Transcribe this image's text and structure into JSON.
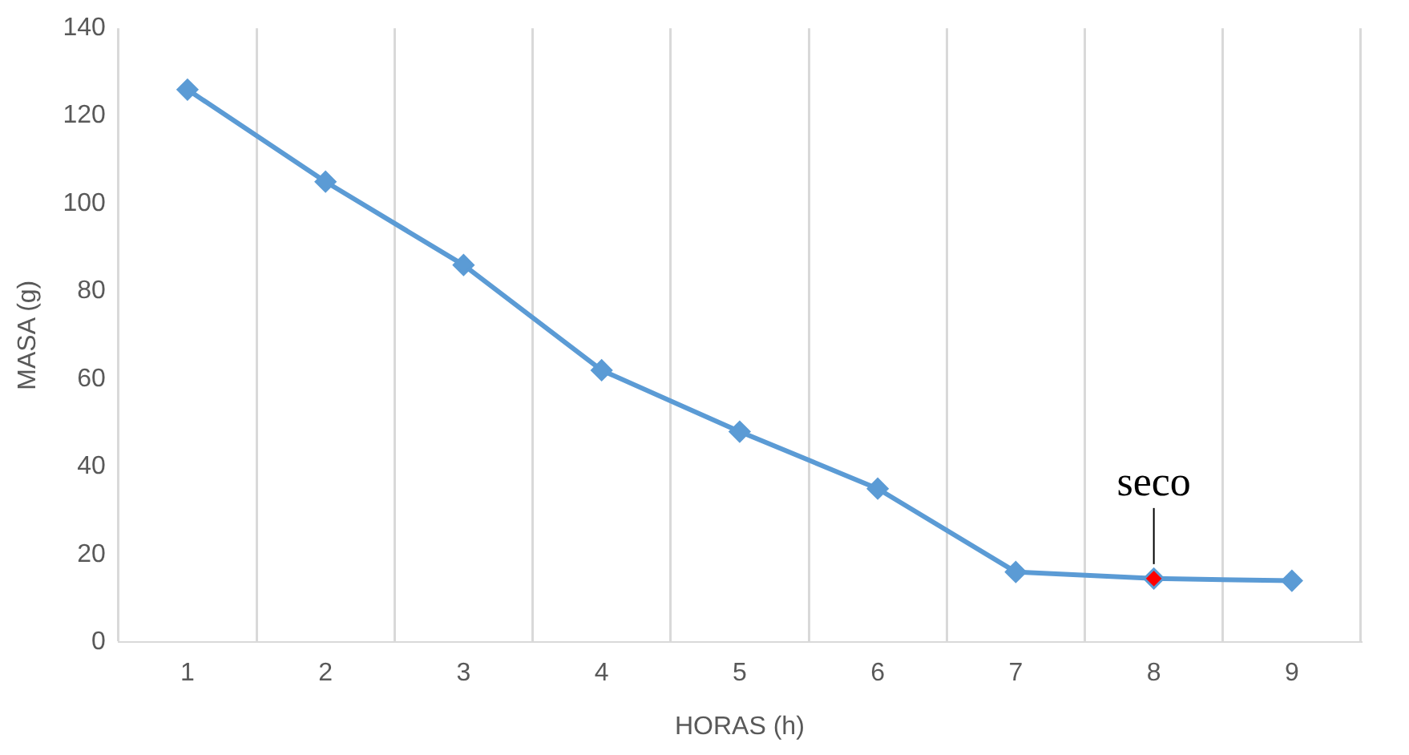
{
  "chart_data": {
    "type": "line",
    "xlabel": "HORAS (h)",
    "ylabel": "MASA (g)",
    "categories": [
      "1",
      "2",
      "3",
      "4",
      "5",
      "6",
      "7",
      "8",
      "9"
    ],
    "series": [
      {
        "color": "#5b9bd5",
        "colors": [
          "#5b9bd5",
          "#5b9bd5",
          "#5b9bd5",
          "#5b9bd5",
          "#5b9bd5",
          "#5b9bd5",
          "#5b9bd5",
          "#ff0000",
          "#5b9bd5"
        ],
        "values": [
          126,
          105,
          86,
          62,
          48,
          35,
          16,
          14.5,
          14
        ]
      }
    ],
    "ylim": [
      0,
      140
    ],
    "yticks": [
      0,
      20,
      40,
      60,
      80,
      100,
      120,
      140
    ],
    "grid": "x",
    "legend": false,
    "marker": "diamond",
    "line_style": "solid",
    "annotations": [
      {
        "text": "seco",
        "x": "8",
        "y": 14.5
      }
    ]
  }
}
